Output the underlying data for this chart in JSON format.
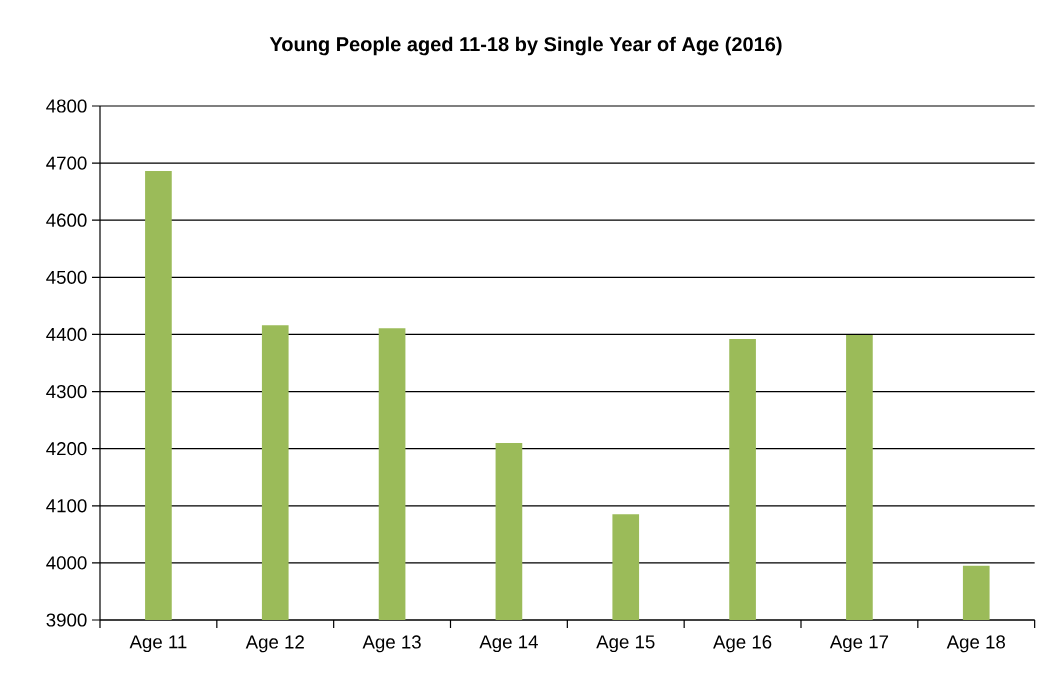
{
  "chart_data": {
    "type": "bar",
    "title": "Young People aged 11-18 by Single Year of Age (2016)",
    "categories": [
      "Age 11",
      "Age 12",
      "Age 13",
      "Age 14",
      "Age 15",
      "Age 16",
      "Age 17",
      "Age 18"
    ],
    "values": [
      4686,
      4416,
      4411,
      4210,
      4085,
      4392,
      4399,
      3995
    ],
    "color": "#9bbb59",
    "ylim": [
      3900,
      4800
    ],
    "yticks": [
      3900,
      4000,
      4100,
      4200,
      4300,
      4400,
      4500,
      4600,
      4700,
      4800
    ],
    "grid": "y"
  }
}
